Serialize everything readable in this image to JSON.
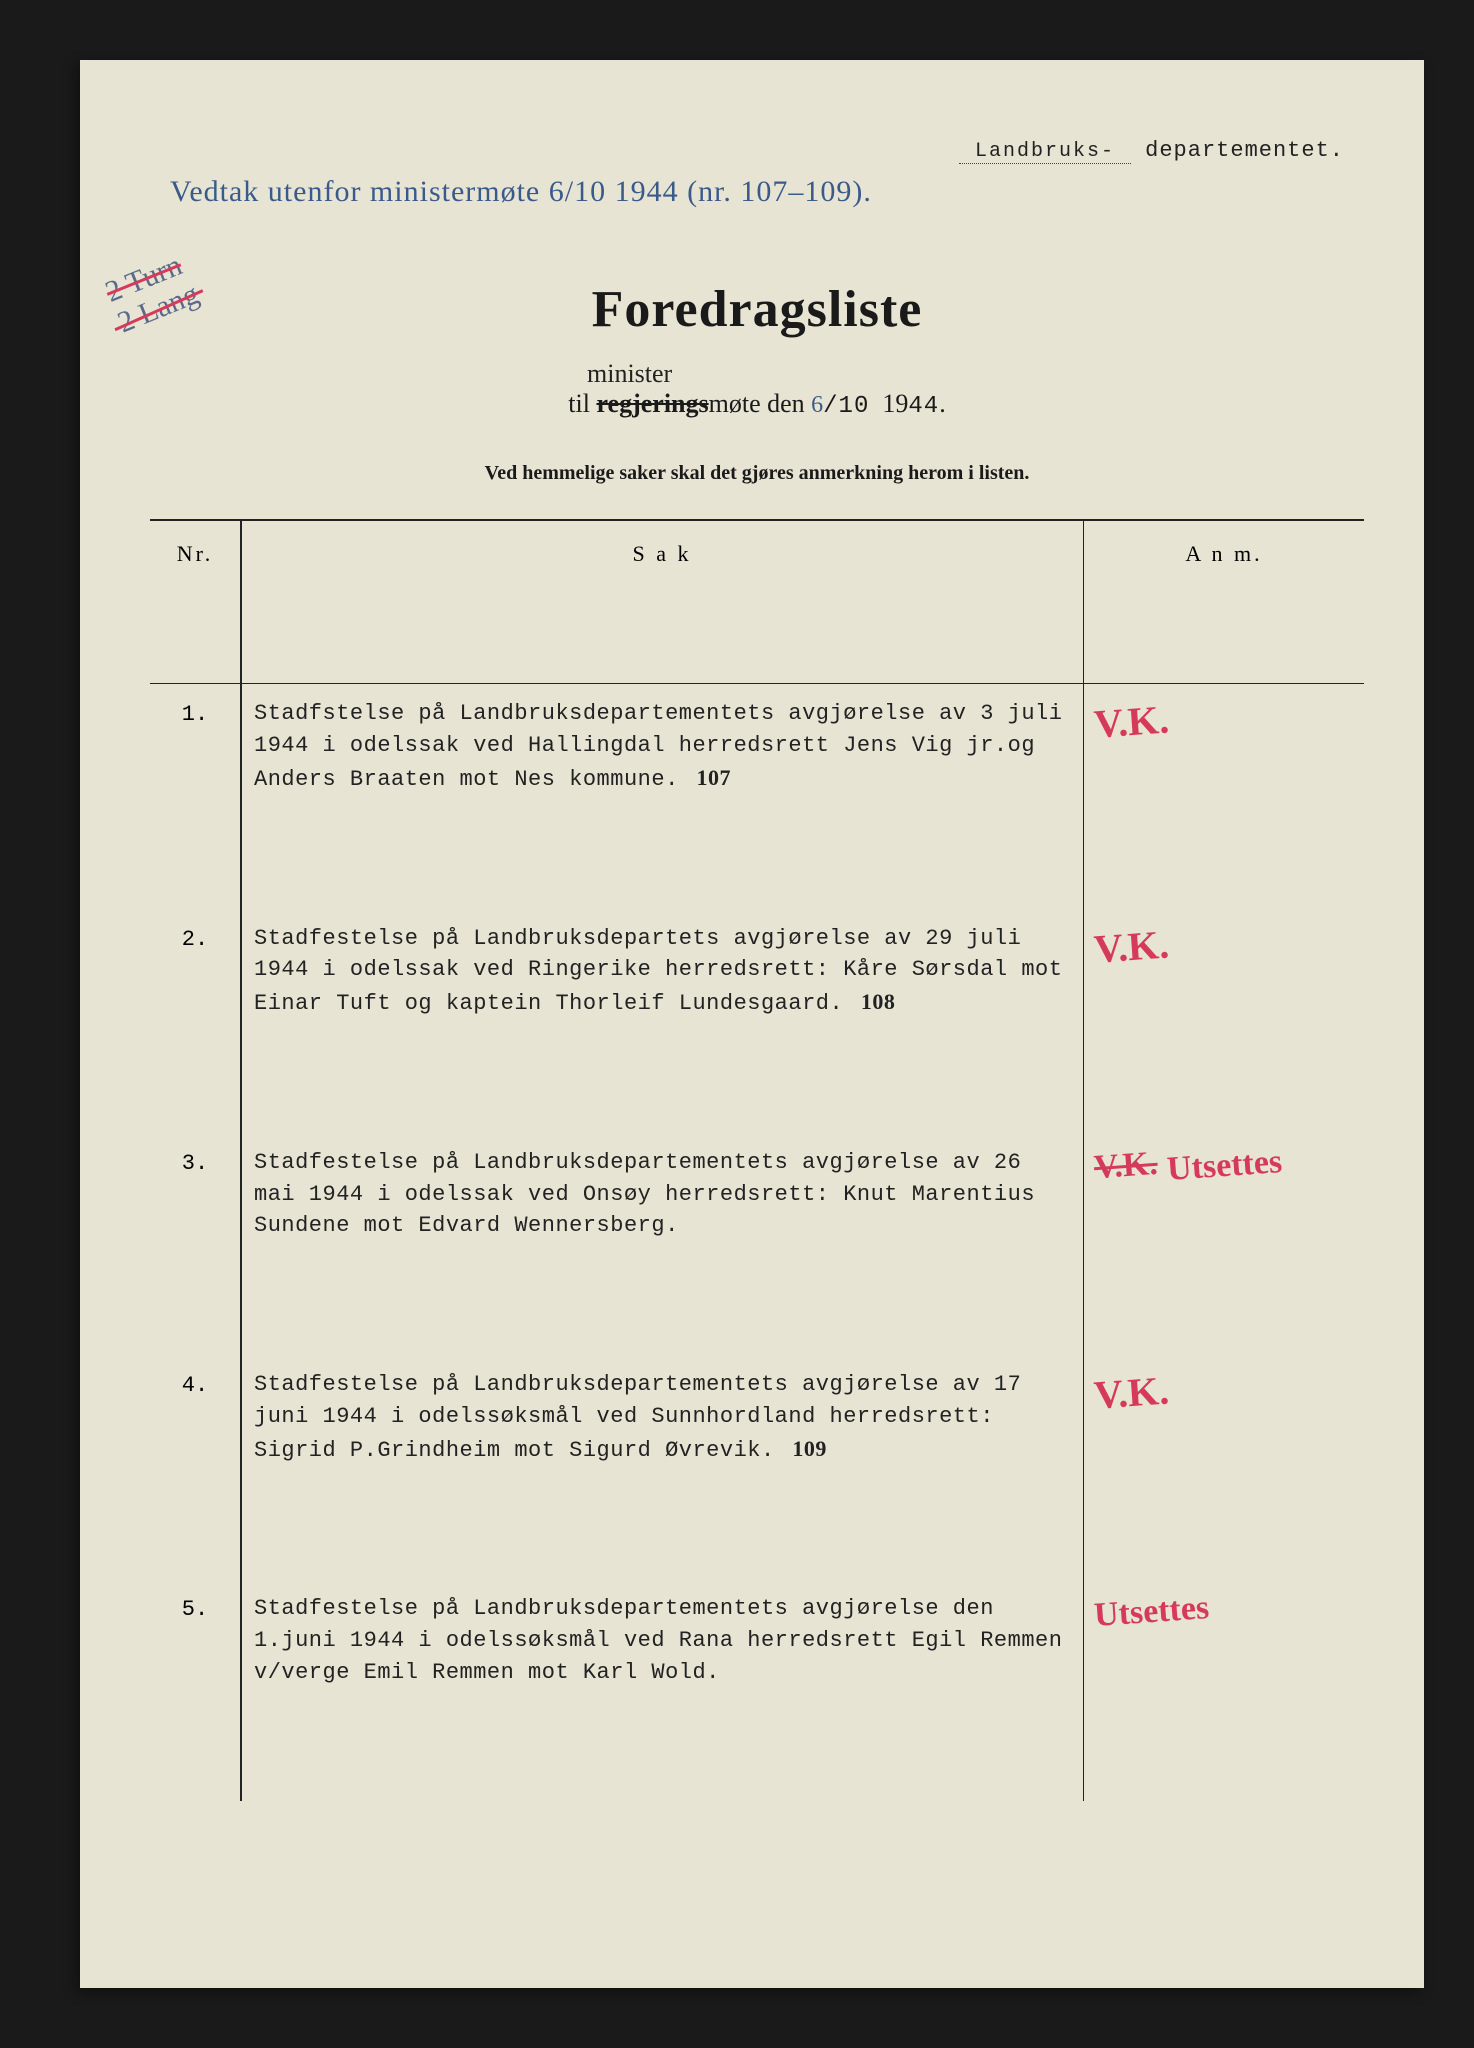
{
  "department": {
    "filled": "Landbruks-",
    "printed": "departementet."
  },
  "top_annotation": "Vedtak utenfor ministermøte 6/10 1944 (nr. 107–109).",
  "margin_scribble": {
    "line1": "2 Turn",
    "line2": "2 Lang"
  },
  "title": "Foredragsliste",
  "subtitle": {
    "prefix": "til",
    "struck": "regjerings",
    "inserted": "minister",
    "mid": "møte den",
    "date_hand": "6",
    "date_rest": "/10",
    "year_prefix": "19",
    "year_fill": "44",
    "suffix": "."
  },
  "note": "Ved hemmelige saker skal det gjøres anmerkning herom i listen.",
  "headers": {
    "nr": "Nr.",
    "sak": "S a k",
    "anm": "A n m."
  },
  "rows": [
    {
      "nr": "1.",
      "sak": "Stadfstelse på Landbruksdepartementets avgjørelse av 3 juli 1944 i odelssak ved Hallingdal herredsrett Jens Vig jr.og Anders Braaten mot Nes kommune.",
      "sak_num": "107",
      "anm": "V.K."
    },
    {
      "nr": "2.",
      "sak": "Stadfestelse på Landbruksdepartets avgjørelse av 29 juli 1944 i odelssak ved Ringerike herredsrett: Kåre Sørsdal mot Einar Tuft og kaptein Thorleif Lundesgaard.",
      "sak_num": "108",
      "anm": "V.K."
    },
    {
      "nr": "3.",
      "sak": "Stadfestelse på Landbruksdepartementets avgjørelse av 26 mai 1944 i odelssak ved Onsøy herredsrett: Knut Marentius Sundene mot Edvard Wennersberg.",
      "sak_num": "",
      "anm_struck": "V.K.",
      "anm": "Utsettes"
    },
    {
      "nr": "4.",
      "sak": "Stadfestelse på Landbruksdepartementets avgjørelse av 17 juni 1944 i odelssøksmål ved Sunnhordland herredsrett: Sigrid P.Grindheim mot Sigurd Øvrevik.",
      "sak_num": "109",
      "anm": "V.K."
    },
    {
      "nr": "5.",
      "sak": "Stadfestelse på Landbruksdepartementets avgjørelse den 1.juni 1944 i odelssøksmål ved Rana herredsrett Egil Remmen v/verge Emil Remmen mot Karl Wold.",
      "sak_num": "",
      "anm": "Utsettes"
    }
  ]
}
